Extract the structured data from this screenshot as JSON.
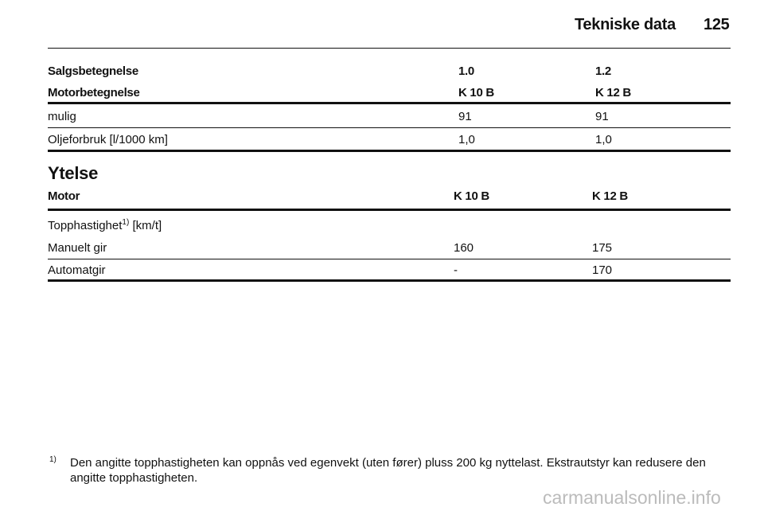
{
  "header": {
    "title": "Tekniske data",
    "page": "125"
  },
  "table1": {
    "head": [
      [
        "Salgsbetegnelse",
        "1.0",
        "1.2"
      ],
      [
        "Motorbetegnelse",
        "K 10 B",
        "K 12 B"
      ]
    ],
    "rows": [
      [
        "mulig",
        "91",
        "91"
      ],
      [
        "Oljeforbruk [l/1000 km]",
        "1,0",
        "1,0"
      ]
    ]
  },
  "section": {
    "title": "Ytelse"
  },
  "table2": {
    "head": [
      "Motor",
      "K 10 B",
      "K 12 B"
    ],
    "subhead": {
      "label": "Topphastighet",
      "note": "1)",
      "unit": "[km/t]"
    },
    "rows": [
      [
        "Manuelt gir",
        "160",
        "175"
      ],
      [
        "Automatgir",
        "-",
        "170"
      ]
    ]
  },
  "footnote": {
    "mark": "1)",
    "text": "Den angitte topphastigheten kan oppnås ved egenvekt (uten fører) pluss 200 kg nyttelast. Ekstrautstyr kan redusere den angitte topphastigheten."
  },
  "watermark": "carmanualsonline.info"
}
